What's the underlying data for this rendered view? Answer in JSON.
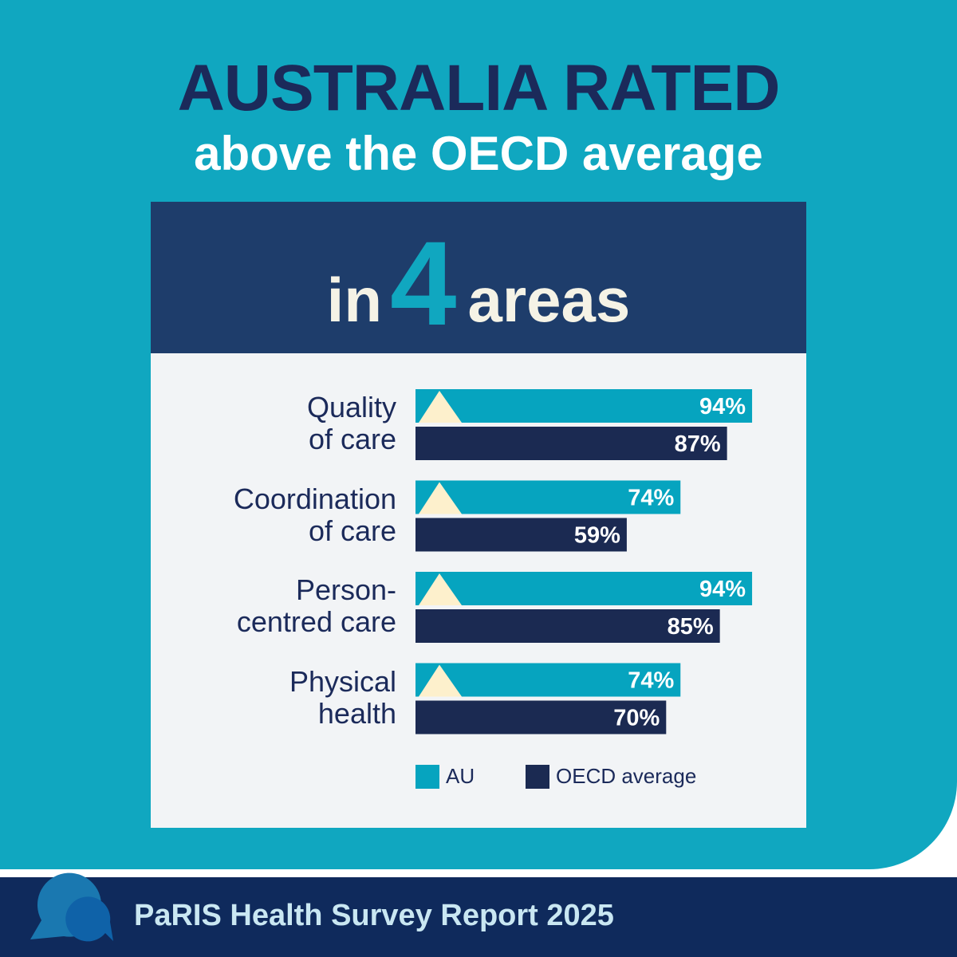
{
  "header": {
    "line1": "AUSTRALIA RATED",
    "line2_bold": "above",
    "line2_rest": " the OECD average"
  },
  "headline": {
    "prefix": "in",
    "number": "4",
    "suffix": "areas"
  },
  "chart_data": {
    "type": "bar",
    "orientation": "horizontal",
    "categories": [
      "Quality\nof care",
      "Coordination\nof care",
      "Person-\ncentred care",
      "Physical\nhealth"
    ],
    "series": [
      {
        "name": "AU",
        "values": [
          94,
          74,
          94,
          74
        ],
        "labels": [
          "94%",
          "74%",
          "94%",
          "74%"
        ]
      },
      {
        "name": "OECD average",
        "values": [
          87,
          59,
          85,
          70
        ],
        "labels": [
          "87%",
          "59%",
          "85%",
          "70%"
        ]
      }
    ],
    "xlim": [
      0,
      100
    ],
    "legend": [
      "AU",
      "OECD average"
    ],
    "legend_position": "bottom",
    "colors": {
      "au": "#06a4bf",
      "oecd": "#1b2a52",
      "marker": "#fdf0cc"
    }
  },
  "footer": {
    "title": "PaRIS Health Survey Report 2025"
  }
}
